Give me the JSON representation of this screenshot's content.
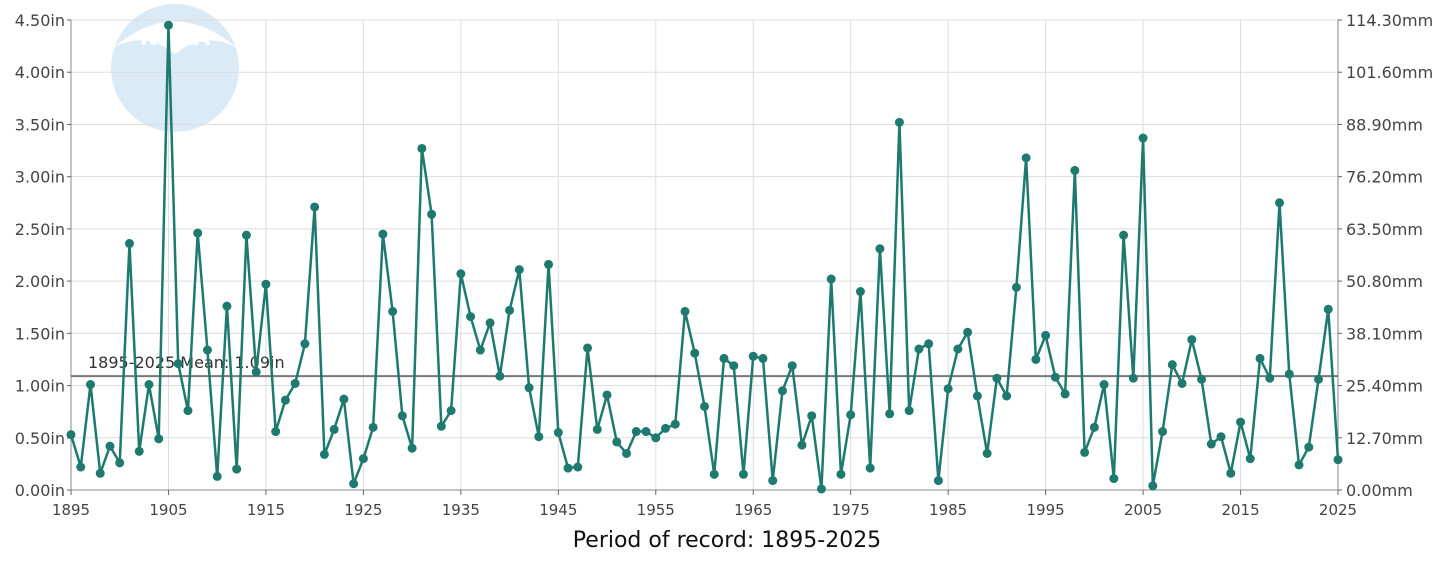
{
  "caption": "Period of record: 1895-2025",
  "watermark": "NOAA",
  "mean_label": "1895-2025 Mean: 1.09in",
  "colors": {
    "series": "#1e7a6f",
    "mean_line": "#777777",
    "grid": "#dddddd",
    "watermark": "#3b8ed6"
  },
  "chart_data": {
    "type": "line",
    "x": [
      1895,
      1896,
      1897,
      1898,
      1899,
      1900,
      1901,
      1902,
      1903,
      1904,
      1905,
      1906,
      1907,
      1908,
      1909,
      1910,
      1911,
      1912,
      1913,
      1914,
      1915,
      1916,
      1917,
      1918,
      1919,
      1920,
      1921,
      1922,
      1923,
      1924,
      1925,
      1926,
      1927,
      1928,
      1929,
      1930,
      1931,
      1932,
      1933,
      1934,
      1935,
      1936,
      1937,
      1938,
      1939,
      1940,
      1941,
      1942,
      1943,
      1944,
      1945,
      1946,
      1947,
      1948,
      1949,
      1950,
      1951,
      1952,
      1953,
      1954,
      1955,
      1956,
      1957,
      1958,
      1959,
      1960,
      1961,
      1962,
      1963,
      1964,
      1965,
      1966,
      1967,
      1968,
      1969,
      1970,
      1971,
      1972,
      1973,
      1974,
      1975,
      1976,
      1977,
      1978,
      1979,
      1980,
      1981,
      1982,
      1983,
      1984,
      1985,
      1986,
      1987,
      1988,
      1989,
      1990,
      1991,
      1992,
      1993,
      1994,
      1995,
      1996,
      1997,
      1998,
      1999,
      2000,
      2001,
      2002,
      2003,
      2004,
      2005,
      2006,
      2007,
      2008,
      2009,
      2010,
      2011,
      2012,
      2013,
      2014,
      2015,
      2016,
      2017,
      2018,
      2019,
      2020,
      2021,
      2022,
      2023,
      2024,
      2025
    ],
    "series": [
      {
        "values": [
          0.53,
          0.22,
          1.01,
          0.16,
          0.42,
          0.26,
          2.36,
          0.37,
          1.01,
          0.49,
          4.45,
          1.21,
          0.76,
          2.46,
          1.34,
          0.13,
          1.76,
          0.2,
          2.44,
          1.13,
          1.97,
          0.56,
          0.86,
          1.02,
          1.4,
          2.71,
          0.34,
          0.58,
          0.87,
          0.06,
          0.3,
          0.6,
          2.45,
          1.71,
          0.71,
          0.4,
          3.27,
          2.64,
          0.61,
          0.76,
          2.07,
          1.66,
          1.34,
          1.6,
          1.09,
          1.72,
          2.11,
          0.98,
          0.51,
          2.16,
          0.55,
          0.21,
          0.22,
          1.36,
          0.58,
          0.91,
          0.46,
          0.35,
          0.56,
          0.56,
          0.5,
          0.59,
          0.63,
          1.71,
          1.31,
          0.8,
          0.15,
          1.26,
          1.19,
          0.15,
          1.28,
          1.26,
          0.09,
          0.95,
          1.19,
          0.43,
          0.71,
          0.01,
          2.02,
          0.15,
          0.72,
          1.9,
          0.21,
          2.31,
          0.73,
          3.52,
          0.76,
          1.35,
          1.4,
          0.09,
          0.97,
          1.35,
          1.51,
          0.9,
          0.35,
          1.07,
          0.9,
          1.94,
          3.18,
          1.25,
          1.48,
          1.08,
          0.92,
          3.06,
          0.36,
          0.6,
          1.01,
          0.11,
          2.44,
          1.07,
          3.37,
          0.04,
          0.56,
          1.2,
          1.02,
          1.44,
          1.06,
          0.44,
          0.51,
          0.16,
          0.65,
          0.3,
          1.26,
          1.07,
          2.75,
          1.11,
          0.24,
          0.41,
          1.06,
          1.73,
          0.29
        ]
      }
    ],
    "mean": 1.09,
    "xlim": [
      1895,
      2025
    ],
    "ylim": [
      0,
      4.5
    ],
    "y_ticks": [
      "0.00in",
      "0.50in",
      "1.00in",
      "1.50in",
      "2.00in",
      "2.50in",
      "3.00in",
      "3.50in",
      "4.00in",
      "4.50in"
    ],
    "y2_ticks": [
      "0.00mm",
      "12.70mm",
      "25.40mm",
      "38.10mm",
      "50.80mm",
      "63.50mm",
      "76.20mm",
      "88.90mm",
      "101.60mm",
      "114.30mm"
    ],
    "x_ticks": [
      "1895",
      "1905",
      "1915",
      "1925",
      "1935",
      "1945",
      "1955",
      "1965",
      "1975",
      "1985",
      "1995",
      "2005",
      "2015",
      "2025"
    ],
    "grid": true
  }
}
